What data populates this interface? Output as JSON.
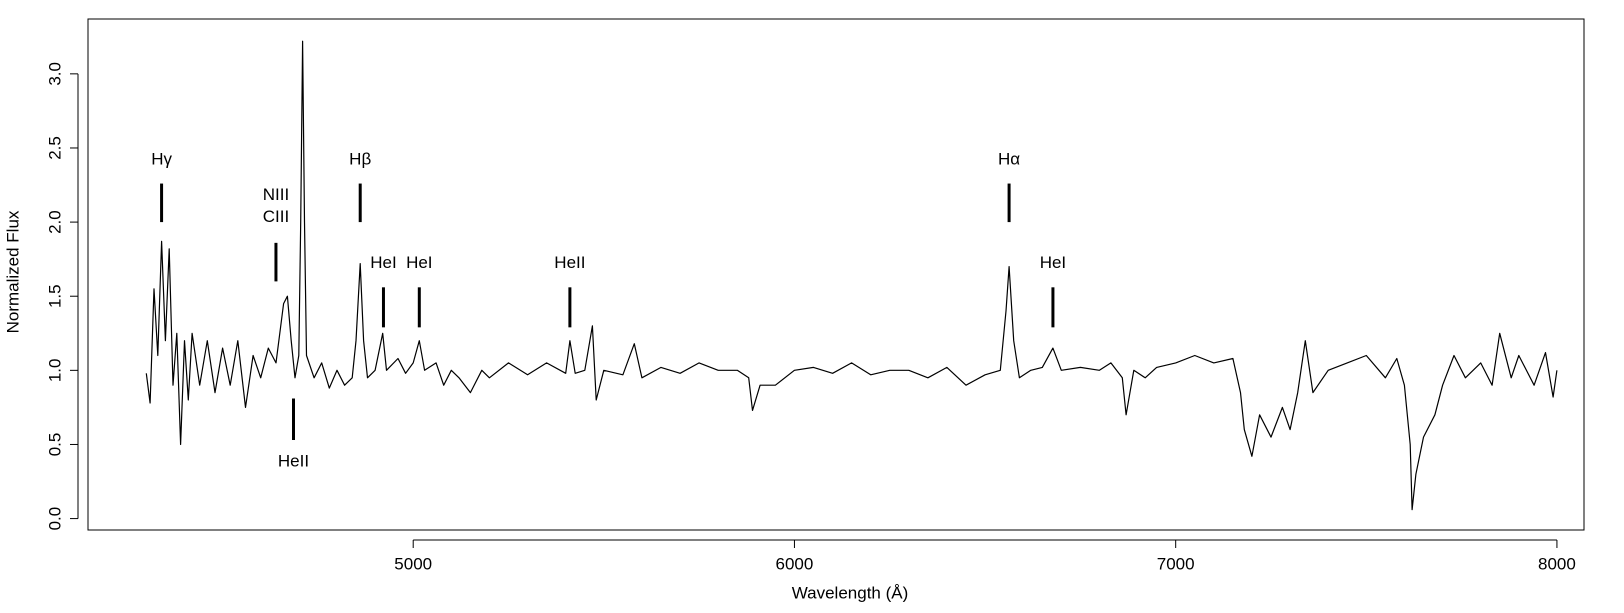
{
  "chart_data": {
    "type": "line",
    "xlabel": "Wavelength (Å)",
    "ylabel": "Normalized Flux",
    "xlim": [
      4147,
      8071
    ],
    "ylim": [
      -0.077,
      3.37
    ],
    "xticks": [
      5000,
      6000,
      7000,
      8000
    ],
    "yticks": [
      {
        "value": 0,
        "label": "0.0"
      },
      {
        "value": 0.5,
        "label": "0.5"
      },
      {
        "value": 1,
        "label": "1.0"
      },
      {
        "value": 1.5,
        "label": "1.5"
      },
      {
        "value": 2,
        "label": "2.0"
      },
      {
        "value": 2.5,
        "label": "2.5"
      },
      {
        "value": 3,
        "label": "3.0"
      }
    ],
    "color": "#000000",
    "x": [
      4300,
      4310,
      4320,
      4330,
      4340,
      4350,
      4360,
      4370,
      4380,
      4390,
      4400,
      4410,
      4420,
      4440,
      4460,
      4480,
      4500,
      4520,
      4540,
      4560,
      4580,
      4600,
      4620,
      4640,
      4660,
      4670,
      4680,
      4690,
      4700,
      4705,
      4710,
      4715,
      4720,
      4740,
      4760,
      4780,
      4800,
      4820,
      4840,
      4850,
      4861,
      4870,
      4880,
      4900,
      4920,
      4930,
      4960,
      4980,
      5000,
      5016,
      5030,
      5060,
      5080,
      5100,
      5120,
      5150,
      5180,
      5200,
      5250,
      5300,
      5350,
      5400,
      5411,
      5425,
      5450,
      5470,
      5480,
      5500,
      5550,
      5580,
      5600,
      5650,
      5700,
      5750,
      5800,
      5850,
      5880,
      5890,
      5910,
      5950,
      6000,
      6050,
      6100,
      6150,
      6200,
      6250,
      6300,
      6350,
      6400,
      6450,
      6500,
      6540,
      6555,
      6563,
      6575,
      6590,
      6620,
      6650,
      6678,
      6700,
      6750,
      6800,
      6830,
      6860,
      6870,
      6890,
      6920,
      6950,
      7000,
      7050,
      7100,
      7150,
      7170,
      7180,
      7200,
      7220,
      7250,
      7280,
      7300,
      7320,
      7340,
      7360,
      7400,
      7450,
      7500,
      7550,
      7580,
      7600,
      7615,
      7620,
      7630,
      7650,
      7680,
      7700,
      7730,
      7760,
      7800,
      7830,
      7850,
      7880,
      7900,
      7940,
      7970,
      7990,
      8000
    ],
    "values": [
      0.98,
      0.78,
      1.55,
      1.1,
      1.87,
      1.2,
      1.82,
      0.9,
      1.25,
      0.5,
      1.2,
      0.8,
      1.25,
      0.9,
      1.2,
      0.85,
      1.15,
      0.9,
      1.2,
      0.75,
      1.1,
      0.95,
      1.15,
      1.05,
      1.45,
      1.5,
      1.2,
      0.95,
      1.1,
      2.0,
      3.22,
      2.0,
      1.1,
      0.95,
      1.05,
      0.88,
      1.0,
      0.9,
      0.95,
      1.2,
      1.72,
      1.2,
      0.95,
      1.0,
      1.25,
      1.0,
      1.08,
      0.98,
      1.05,
      1.2,
      1.0,
      1.05,
      0.9,
      1.0,
      0.95,
      0.85,
      1.0,
      0.95,
      1.05,
      0.97,
      1.05,
      0.98,
      1.2,
      0.98,
      1.0,
      1.3,
      0.8,
      1.0,
      0.97,
      1.18,
      0.95,
      1.02,
      0.98,
      1.05,
      1.0,
      1.0,
      0.95,
      0.73,
      0.9,
      0.9,
      1.0,
      1.02,
      0.98,
      1.05,
      0.97,
      1.0,
      1.0,
      0.95,
      1.02,
      0.9,
      0.97,
      1.0,
      1.4,
      1.7,
      1.2,
      0.95,
      1.0,
      1.02,
      1.15,
      1.0,
      1.02,
      1.0,
      1.05,
      0.95,
      0.7,
      1.0,
      0.95,
      1.02,
      1.05,
      1.1,
      1.05,
      1.08,
      0.85,
      0.6,
      0.42,
      0.7,
      0.55,
      0.75,
      0.6,
      0.85,
      1.2,
      0.85,
      1.0,
      1.05,
      1.1,
      0.95,
      1.08,
      0.9,
      0.5,
      0.06,
      0.3,
      0.55,
      0.7,
      0.9,
      1.1,
      0.95,
      1.05,
      0.9,
      1.25,
      0.95,
      1.1,
      0.9,
      1.12,
      0.82,
      1.0
    ],
    "annotations": [
      {
        "label": "Hγ",
        "x": 4340,
        "label_y": 2.42,
        "tick": [
          2.0,
          2.26
        ]
      },
      {
        "label": "NIII",
        "x": 4640,
        "label_y": 2.18
      },
      {
        "label": "CIII",
        "x": 4640,
        "label_y": 2.03,
        "tick": [
          1.6,
          1.86
        ]
      },
      {
        "label": "HeII",
        "x": 4686,
        "label_y": 0.38,
        "tick": [
          0.53,
          0.81
        ]
      },
      {
        "label": "Hβ",
        "x": 4861,
        "label_y": 2.42,
        "tick": [
          2.0,
          2.26
        ]
      },
      {
        "label": "HeI",
        "x": 4922,
        "label_y": 1.72,
        "tick": [
          1.29,
          1.56
        ]
      },
      {
        "label": "HeI",
        "x": 5016,
        "label_y": 1.72,
        "tick": [
          1.29,
          1.56
        ]
      },
      {
        "label": "HeII",
        "x": 5411,
        "label_y": 1.72,
        "tick": [
          1.29,
          1.56
        ]
      },
      {
        "label": "Hα",
        "x": 6563,
        "label_y": 2.42,
        "tick": [
          2.0,
          2.26
        ]
      },
      {
        "label": "HeI",
        "x": 6678,
        "label_y": 1.72,
        "tick": [
          1.29,
          1.56
        ]
      }
    ]
  }
}
